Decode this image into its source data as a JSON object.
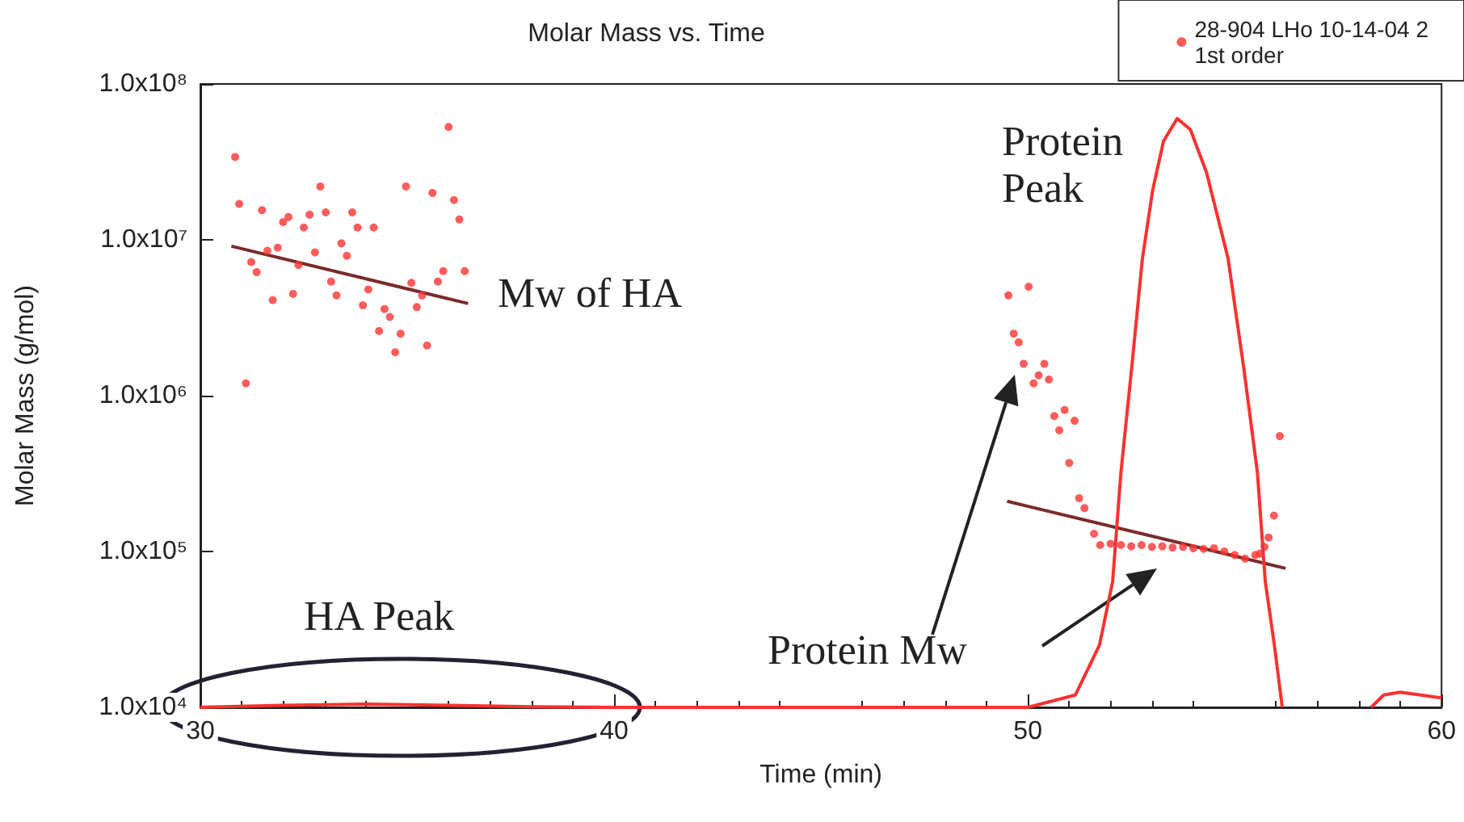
{
  "chart_data": {
    "type": "scatter",
    "title": "Molar Mass vs. Time",
    "xlabel": "Time (min)",
    "ylabel": "Molar Mass (g/mol)",
    "log": "y",
    "xlim": [
      30,
      60
    ],
    "xticks": [
      30,
      40,
      50,
      60
    ],
    "ylim": [
      10000,
      100000000
    ],
    "yticks": [
      {
        "value": 10000,
        "label": "1.0x10⁴"
      },
      {
        "value": 100000,
        "label": "1.0x10⁵"
      },
      {
        "value": 1000000,
        "label": "1.0x10⁶"
      },
      {
        "value": 10000000,
        "label": "1.0x10⁷"
      },
      {
        "value": 100000000,
        "label": "1.0x10⁸"
      }
    ],
    "grid": false,
    "legend": "top right",
    "marker": "circle",
    "annotations": [
      "Mw of HA",
      "Protein Peak",
      "HA Peak",
      "Protein Mw"
    ],
    "series": [
      {
        "name": "28-904 LHo 10-14-04 2\n1st order",
        "color": "#ff3333",
        "x": [
          30.84,
          30.94,
          31.1,
          31.23,
          31.36,
          31.49,
          31.62,
          31.75,
          31.87,
          32.0,
          32.13,
          32.24,
          32.37,
          32.5,
          32.64,
          32.77,
          32.9,
          33.03,
          33.16,
          33.29,
          33.41,
          33.54,
          33.67,
          33.8,
          33.93,
          34.06,
          34.19,
          34.32,
          34.45,
          34.58,
          34.71,
          34.84,
          34.97,
          35.1,
          35.23,
          35.36,
          35.48,
          35.61,
          35.74,
          35.87,
          36.0,
          36.13,
          36.26,
          36.39,
          49.53,
          50.02,
          49.66,
          49.78,
          49.9,
          50.4,
          50.26,
          50.14,
          50.51,
          50.64,
          50.89,
          50.76,
          51.13,
          51.0,
          51.24,
          51.37,
          51.6,
          51.75,
          52.0,
          52.25,
          52.5,
          52.75,
          53.0,
          53.25,
          53.5,
          53.75,
          54.0,
          54.25,
          54.5,
          54.75,
          55.0,
          55.25,
          55.5,
          55.61,
          55.72,
          55.82,
          55.95,
          56.09
        ],
        "values": [
          34000000,
          17000000,
          1200000,
          7200000,
          6200000,
          15500000,
          8500000,
          4100000,
          8900000,
          13000000,
          14000000,
          4500000,
          6900000,
          12000000,
          14500000,
          8300000,
          22000000,
          15000000,
          5400000,
          4400000,
          9500000,
          7900000,
          15000000,
          12000000,
          3800000,
          4800000,
          12000000,
          2600000,
          3600000,
          3200000,
          1900000,
          2500000,
          22000000,
          5300000,
          3700000,
          4400000,
          2100000,
          20000000,
          5400000,
          6300000,
          53000000,
          18000000,
          13500000,
          6300000,
          4400000,
          5000000,
          2500000,
          2200000,
          1600000,
          1600000,
          1350000,
          1200000,
          1270000,
          740000,
          810000,
          600000,
          690000,
          370000,
          220000,
          190000,
          130000,
          110000,
          112000,
          110000,
          108000,
          110000,
          107000,
          108000,
          106000,
          107000,
          105000,
          104000,
          105000,
          100000,
          95000,
          90000,
          95000,
          97000,
          107000,
          123000,
          170000,
          550000
        ]
      },
      {
        "type": "line",
        "marker": "none",
        "color": "#7a2a2a",
        "x": [
          30.75,
          36.47
        ],
        "values": [
          9100000,
          3900000
        ]
      },
      {
        "type": "line",
        "marker": "none",
        "color": "#7a2a2a",
        "x": [
          49.5,
          56.23
        ],
        "values": [
          210000,
          78000
        ]
      },
      {
        "type": "line",
        "marker": "none",
        "color": "#ff3030",
        "x": [
          30,
          32,
          34,
          36,
          38,
          40,
          49.5,
          50,
          51.15,
          51.73,
          52.05,
          52.25,
          52.51,
          52.77,
          53.02,
          53.28,
          53.61,
          53.93,
          54.32,
          54.84,
          55.22,
          55.55,
          55.74,
          55.96,
          56.15,
          56.2,
          58.3,
          58.6,
          59,
          59.5,
          60
        ],
        "values": [
          10000,
          10300,
          10500,
          10300,
          10100,
          10000,
          10000,
          10000,
          12000,
          25000,
          64000,
          320000,
          1500000,
          7600000,
          21000000,
          43000000,
          60000000,
          51000000,
          27000000,
          7600000,
          1500000,
          320000,
          64000,
          25000,
          10000,
          null,
          10000,
          12000,
          12500,
          12000,
          11500
        ]
      }
    ]
  }
}
